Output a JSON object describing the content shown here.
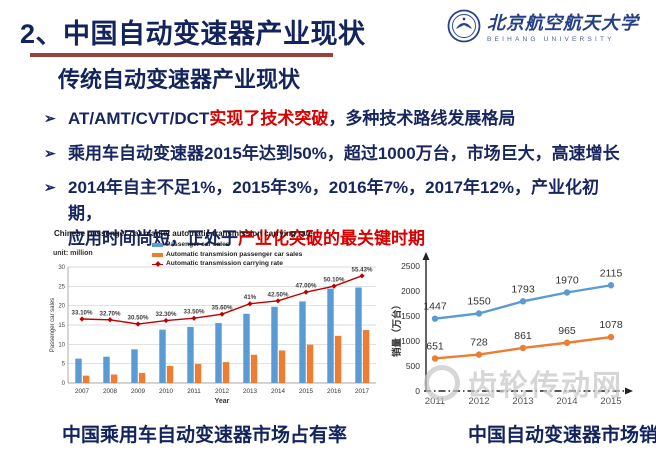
{
  "header": {
    "title": "2、中国自动变速器产业现状",
    "logo_cn": "北京航空航天大学",
    "logo_en": "BEIHANG UNIVERSITY"
  },
  "section": {
    "subtitle": "传统自动变速器产业现状"
  },
  "bullets": [
    {
      "marker": "➢",
      "pre": "AT/AMT/CVT/DCT",
      "red": "实现了技术突破",
      "post": "，多种技术路线发展格局"
    },
    {
      "marker": "➢",
      "pre": "乘用车自动变速器2015年达到50%，超过1000万台，市场巨大，高速增长",
      "red": "",
      "post": ""
    },
    {
      "marker": "➢",
      "pre": "2014年自主不足1%，2015年3%，2016年7%，2017年12%，产业化初期，\n应用时间尚短，正处于",
      "red": "产业化突破的最关键时期",
      "post": ""
    }
  ],
  "chart_data": [
    {
      "type": "bar",
      "title": "Chinese passenger car market automatic transmission carrying rate",
      "unit_note": "unit: million",
      "xlabel": "Year",
      "ylabel": "Passenger car sales",
      "categories": [
        "2007",
        "2008",
        "2009",
        "2010",
        "2011",
        "2012",
        "2013",
        "2014",
        "2015",
        "2016",
        "2017"
      ],
      "series": [
        {
          "name": "Passenger car sales",
          "kind": "bar",
          "color": "#5b9bd5",
          "values": [
            6.3,
            6.8,
            8.7,
            13.8,
            14.5,
            15.5,
            17.9,
            19.7,
            21.1,
            24.4,
            24.7
          ]
        },
        {
          "name": "Automatic transmision passenger car sales",
          "kind": "bar",
          "color": "#ed7d31",
          "values": [
            1.9,
            2.2,
            2.6,
            4.4,
            4.9,
            5.4,
            7.3,
            8.4,
            9.9,
            12.2,
            13.7
          ]
        },
        {
          "name": "Automatic transmission carrying rate",
          "kind": "line",
          "color": "#c00000",
          "values": [
            "33.10%",
            "32.70%",
            "30.50%",
            "32.30%",
            "33.50%",
            "35.60%",
            "41%",
            "42.50%",
            "47.00%",
            "50.10%",
            "55.43%"
          ]
        }
      ],
      "ylim": [
        0,
        30
      ],
      "yticks": [
        0,
        5,
        10,
        15,
        20,
        25,
        30
      ],
      "rate_axis_max": 60,
      "grid": true,
      "legend_position": "top"
    },
    {
      "type": "line",
      "ylabel": "销量（万台）",
      "categories": [
        "2011",
        "2012",
        "2013",
        "2014",
        "2015"
      ],
      "series": [
        {
          "color": "#5b9bd5",
          "values": [
            1447,
            1550,
            1793,
            1970,
            2115
          ]
        },
        {
          "color": "#ed7d31",
          "values": [
            651,
            728,
            861,
            965,
            1078
          ]
        }
      ],
      "ylim": [
        0,
        2500
      ],
      "yticks": [
        0,
        500,
        1000,
        1500,
        2000,
        2500
      ],
      "grid": false,
      "legend_position": "none"
    }
  ],
  "captions": {
    "left": "中国乘用车自动变速器市场占有率",
    "right": "中国自动变速器市场销量"
  },
  "watermark": {
    "text": "齿轮传动网"
  },
  "colors": {
    "navy": "#13235c",
    "red": "#d80000",
    "bar_blue": "#5b9bd5",
    "bar_orange": "#ed7d31",
    "rate_red": "#c00000"
  }
}
